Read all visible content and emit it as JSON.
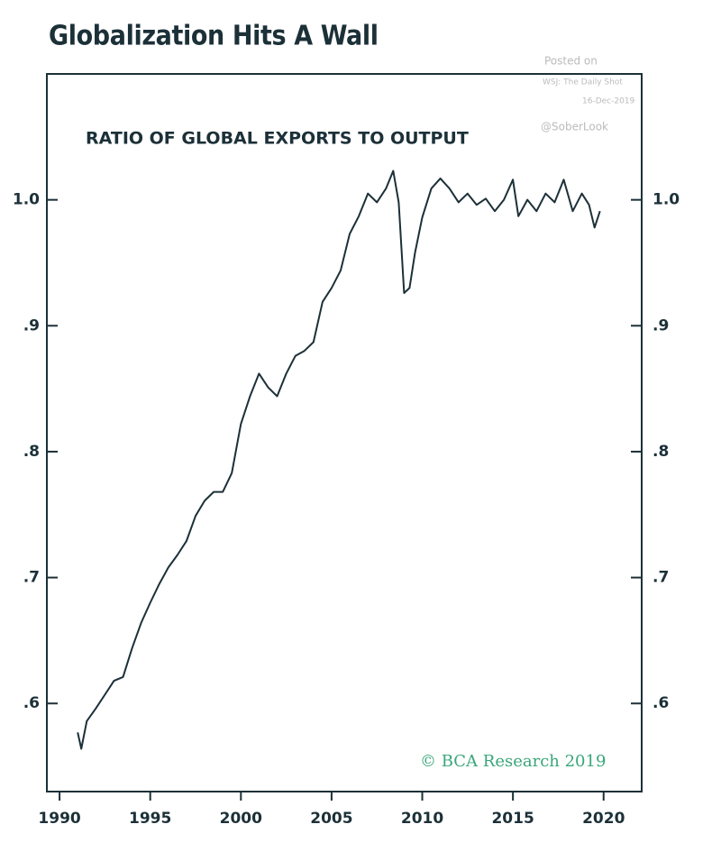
{
  "chart_data": {
    "type": "line",
    "title": "Globalization Hits A Wall",
    "subtitle": "RATIO OF GLOBAL EXPORTS TO OUTPUT",
    "annotations": [
      "Posted on",
      "WSJ: The Daily Shot",
      "16-Dec-2019",
      "@SoberLook",
      "© BCA Research 2019"
    ],
    "x": [
      1991.0,
      1991.2,
      1991.5,
      1992.0,
      1992.5,
      1993.0,
      1993.5,
      1994.0,
      1994.5,
      1995.0,
      1995.5,
      1996.0,
      1996.5,
      1997.0,
      1997.5,
      1998.0,
      1998.5,
      1999.0,
      1999.5,
      2000.0,
      2000.5,
      2001.0,
      2001.5,
      2002.0,
      2002.5,
      2003.0,
      2003.5,
      2004.0,
      2004.5,
      2005.0,
      2005.5,
      2006.0,
      2006.5,
      2007.0,
      2007.5,
      2008.0,
      2008.4,
      2008.7,
      2009.0,
      2009.3,
      2009.6,
      2010.0,
      2010.5,
      2011.0,
      2011.5,
      2012.0,
      2012.5,
      2013.0,
      2013.5,
      2014.0,
      2014.5,
      2015.0,
      2015.3,
      2015.8,
      2016.3,
      2016.8,
      2017.3,
      2017.8,
      2018.3,
      2018.8,
      2019.2,
      2019.5,
      2019.8
    ],
    "series": [
      {
        "name": "Ratio of global exports to output",
        "color": "#1c3038",
        "values": [
          0.577,
          0.564,
          0.586,
          0.596,
          0.607,
          0.618,
          0.621,
          0.644,
          0.664,
          0.68,
          0.695,
          0.708,
          0.718,
          0.729,
          0.749,
          0.761,
          0.768,
          0.768,
          0.783,
          0.822,
          0.844,
          0.862,
          0.851,
          0.844,
          0.862,
          0.876,
          0.88,
          0.887,
          0.919,
          0.93,
          0.944,
          0.973,
          0.987,
          1.005,
          0.998,
          1.009,
          1.023,
          0.998,
          0.926,
          0.93,
          0.958,
          0.986,
          1.009,
          1.017,
          1.009,
          0.998,
          1.005,
          0.996,
          1.001,
          0.991,
          1.0,
          1.016,
          0.987,
          1.0,
          0.991,
          1.005,
          0.998,
          1.016,
          0.991,
          1.005,
          0.996,
          0.978,
          0.991
        ]
      }
    ],
    "xlim": [
      1989.3,
      2022.1
    ],
    "xticks": [
      1990,
      1995,
      2000,
      2005,
      2010,
      2015,
      2020
    ],
    "ylim": [
      0.53,
      1.1
    ],
    "yticks": [
      {
        "value": 0.6,
        "label": ".6"
      },
      {
        "value": 0.7,
        "label": ".7"
      },
      {
        "value": 0.8,
        "label": ".8"
      },
      {
        "value": 0.9,
        "label": ".9"
      },
      {
        "value": 1,
        "label": "1.0"
      }
    ],
    "grid": false
  }
}
